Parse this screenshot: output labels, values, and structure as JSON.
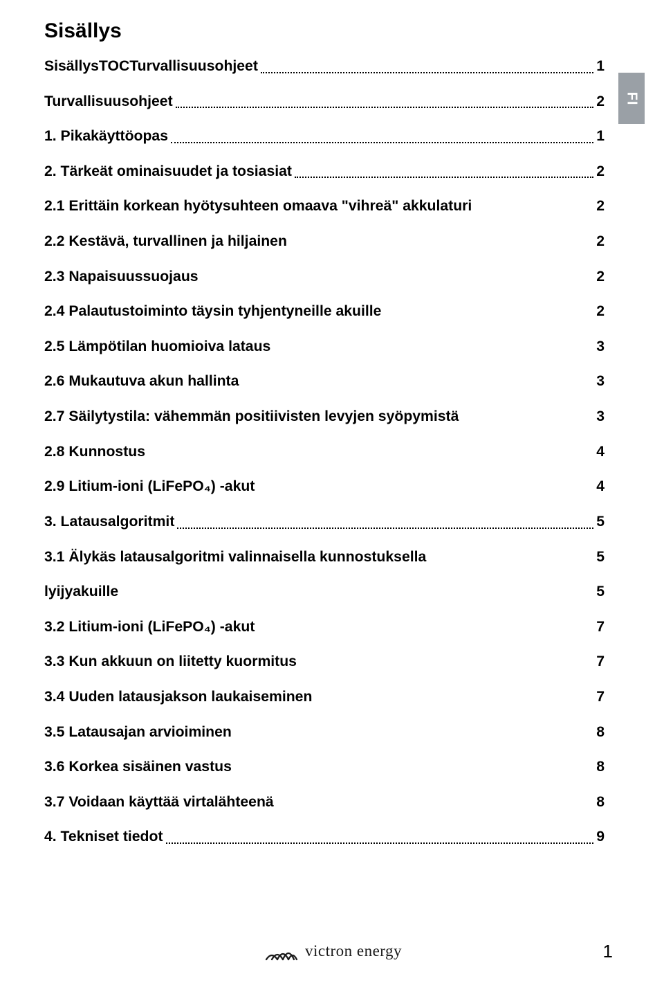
{
  "title": "Sisällys",
  "language_tab": "FI",
  "toc": [
    {
      "label": "SisällysTOCTurvallisuusohjeet",
      "page": "1",
      "dotted": true,
      "indent": 0
    },
    {
      "label": "Turvallisuusohjeet",
      "page": "2",
      "dotted": true,
      "indent": 0
    },
    {
      "label": "1. Pikakäyttöopas",
      "page": "1",
      "dotted": true,
      "indent": 0
    },
    {
      "label": "2. Tärkeät ominaisuudet ja tosiasiat",
      "page": "2",
      "dotted": true,
      "indent": 0
    },
    {
      "label": "2.1 Erittäin korkean hyötysuhteen omaava \"vihreä\" akkulaturi",
      "page": "2",
      "dotted": false,
      "indent": 0
    },
    {
      "label": "2.2 Kestävä, turvallinen ja hiljainen",
      "page": "2",
      "dotted": false,
      "indent": 0
    },
    {
      "label": "2.3 Napaisuussuojaus",
      "page": "2",
      "dotted": false,
      "indent": 0
    },
    {
      "label": "2.4 Palautustoiminto täysin tyhjentyneille akuille",
      "page": "2",
      "dotted": false,
      "indent": 0
    },
    {
      "label": "2.5 Lämpötilan huomioiva lataus",
      "page": "3",
      "dotted": false,
      "indent": 0
    },
    {
      "label": "2.6 Mukautuva akun hallinta",
      "page": "3",
      "dotted": false,
      "indent": 0
    },
    {
      "label": "2.7 Säilytystila: vähemmän positiivisten levyjen syöpymistä",
      "page": "3",
      "dotted": false,
      "indent": 0
    },
    {
      "label": "2.8 Kunnostus",
      "page": "4",
      "dotted": false,
      "indent": 0
    },
    {
      "label": "2.9 Litium-ioni (LiFePO₄) -akut",
      "page": "4",
      "dotted": false,
      "indent": 0
    },
    {
      "label": "3. Latausalgoritmit",
      "page": "5",
      "dotted": true,
      "indent": 0
    },
    {
      "label": "3.1 Älykäs latausalgoritmi valinnaisella kunnostuksella",
      "page": "5",
      "dotted": false,
      "indent": 0
    },
    {
      "label": "lyijyakuille",
      "page": "5",
      "dotted": false,
      "indent": 0
    },
    {
      "label": "3.2 Litium-ioni (LiFePO₄) -akut",
      "page": "7",
      "dotted": false,
      "indent": 0
    },
    {
      "label": "3.3 Kun akkuun on liitetty kuormitus",
      "page": "7",
      "dotted": false,
      "indent": 0
    },
    {
      "label": "3.4 Uuden latausjakson laukaiseminen",
      "page": "7",
      "dotted": false,
      "indent": 0
    },
    {
      "label": "3.5 Latausajan arvioiminen",
      "page": "8",
      "dotted": false,
      "indent": 0
    },
    {
      "label": "3.6 Korkea sisäinen vastus",
      "page": "8",
      "dotted": false,
      "indent": 0
    },
    {
      "label": "3.7 Voidaan käyttää virtalähteenä",
      "page": "8",
      "dotted": false,
      "indent": 0
    },
    {
      "label": "4. Tekniset tiedot",
      "page": "9",
      "dotted": true,
      "indent": 0
    }
  ],
  "footer": {
    "brand": "victron energy",
    "page_number": "1"
  },
  "colors": {
    "text": "#000000",
    "tab_bg": "#9aa0a6",
    "tab_text": "#ffffff",
    "background": "#ffffff"
  }
}
